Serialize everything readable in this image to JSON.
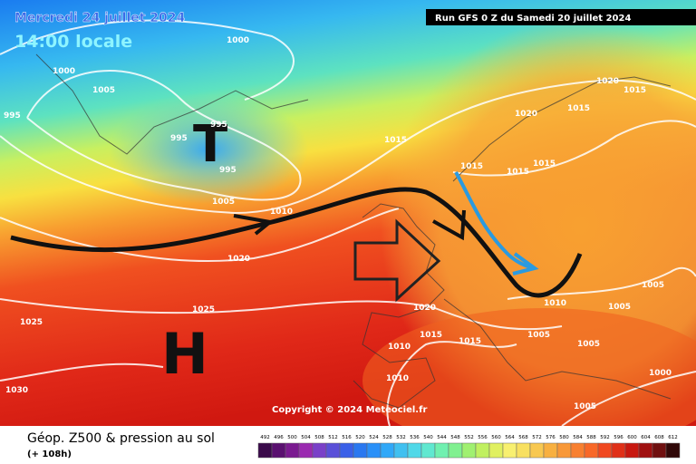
{
  "header": {
    "date": "Mercredi 24 juillet 2024",
    "time": "14:00 locale",
    "run": "Run GFS 0 Z du Samedi 20 juillet 2024"
  },
  "map": {
    "low_symbol": "T",
    "high_symbol": "H",
    "copyright": "Copyright © 2024 Meteociel.fr",
    "pressure_labels": [
      995,
      1000,
      1000,
      1005,
      995,
      995,
      995,
      1005,
      1010,
      1015,
      1020,
      1025,
      1025,
      1030,
      1020,
      1015,
      1020,
      1015,
      1015,
      1015,
      1015,
      1020,
      1015,
      1015,
      1010,
      1010,
      1005,
      1010,
      1005,
      1005,
      1005,
      1000,
      1005
    ]
  },
  "legend": {
    "title": "Géop. Z500 & pression au sol",
    "subtitle": "(+ 108h)",
    "scale": [
      492,
      496,
      500,
      504,
      508,
      512,
      516,
      520,
      524,
      528,
      532,
      536,
      540,
      544,
      548,
      552,
      556,
      560,
      564,
      568,
      572,
      576,
      580,
      584,
      588,
      592,
      596,
      600,
      604,
      608,
      612
    ],
    "colors": [
      "#3a0a4a",
      "#5a1070",
      "#7a1a90",
      "#9a2ab0",
      "#7a40c8",
      "#5a50d8",
      "#3a60e8",
      "#2a78f0",
      "#2a90f8",
      "#30a8f8",
      "#40c0f0",
      "#50d8e8",
      "#60e8d0",
      "#70f0b0",
      "#80f090",
      "#a0f070",
      "#c0f060",
      "#e0f060",
      "#f8f070",
      "#f8e060",
      "#f8c850",
      "#f8b040",
      "#f89838",
      "#f88030",
      "#f86828",
      "#f04820",
      "#e03018",
      "#c81810",
      "#a01010",
      "#701010",
      "#300808"
    ]
  }
}
